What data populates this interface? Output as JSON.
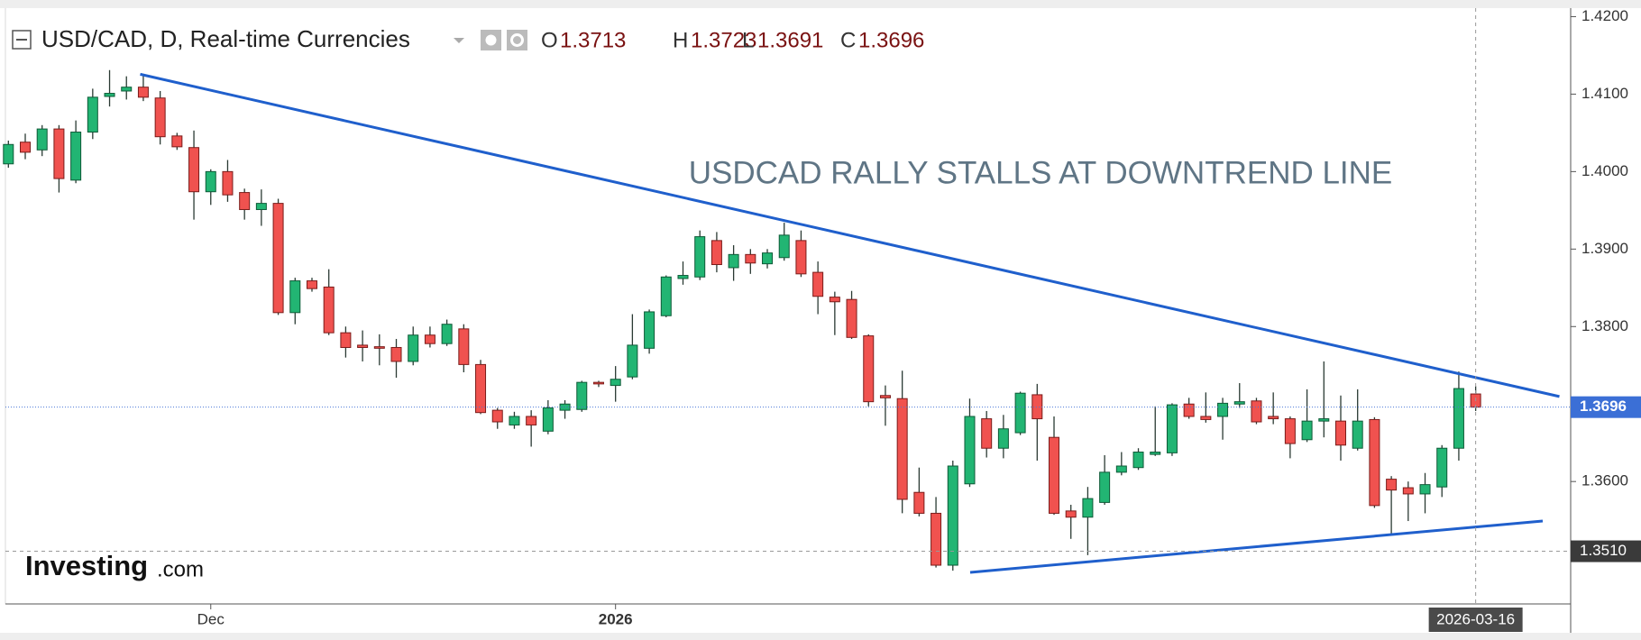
{
  "chart_data": {
    "type": "candlestick",
    "title": "USD/CAD, D, Real-time Currencies",
    "ohlc_labels": [
      "O",
      "H",
      "L",
      "C"
    ],
    "annotation": "USDCAD RALLY STALLS AT DOWNTREND LINE",
    "logo": {
      "name": "Investing",
      "suffix": ".com"
    },
    "categories": [
      null,
      null,
      null,
      null,
      null,
      null,
      null,
      null,
      null,
      null,
      null,
      null,
      "Dec",
      null,
      null,
      null,
      null,
      null,
      null,
      null,
      null,
      null,
      null,
      null,
      null,
      null,
      null,
      null,
      null,
      null,
      null,
      null,
      null,
      null,
      null,
      null,
      "2026",
      null,
      null,
      null,
      null,
      null,
      null,
      null,
      null,
      null,
      null,
      null,
      null,
      null,
      null,
      null,
      null,
      null,
      null,
      null,
      null,
      null,
      null,
      null,
      null,
      null,
      null,
      null,
      null,
      null,
      null,
      null,
      null,
      null,
      null,
      null,
      null,
      null,
      null,
      null,
      null,
      null,
      null,
      null,
      null,
      null,
      null,
      null,
      null,
      null,
      null,
      "2026-03-16"
    ],
    "open": [
      1.401,
      1.4038,
      1.4028,
      1.4055,
      1.3989,
      1.4051,
      1.4097,
      1.4104,
      1.4109,
      1.4095,
      1.4046,
      1.4031,
      1.3974,
      1.4,
      1.3973,
      1.3951,
      1.3959,
      1.3818,
      1.3859,
      1.3851,
      1.3792,
      1.3776,
      1.3774,
      1.3773,
      1.3755,
      1.3789,
      1.3778,
      1.3797,
      1.3751,
      1.3692,
      1.3673,
      1.3684,
      1.3665,
      1.3692,
      1.3693,
      1.3728,
      1.3724,
      1.3735,
      1.3772,
      1.3814,
      1.3862,
      1.3864,
      1.3911,
      1.3876,
      1.3893,
      1.3881,
      1.3889,
      1.3911,
      1.387,
      1.3838,
      1.3835,
      1.3788,
      1.3711,
      1.3707,
      1.3586,
      1.3559,
      1.3492,
      1.3597,
      1.3681,
      1.3643,
      1.3663,
      1.3712,
      1.3657,
      1.3562,
      1.3554,
      1.3573,
      1.3612,
      1.3618,
      1.3635,
      1.3637,
      1.37,
      1.3684,
      1.3684,
      1.37,
      1.3704,
      1.3684,
      1.3681,
      1.3654,
      1.3678,
      1.3678,
      1.3643,
      1.368,
      1.3603,
      1.3592,
      1.3584,
      1.3593,
      1.3643,
      1.3713
    ],
    "high": [
      1.404,
      1.4049,
      1.406,
      1.406,
      1.4066,
      1.4107,
      1.4131,
      1.4123,
      1.4124,
      1.4104,
      1.405,
      1.4053,
      1.4003,
      1.4015,
      1.3978,
      1.3977,
      1.3965,
      1.3863,
      1.3863,
      1.3874,
      1.38,
      1.3795,
      1.379,
      1.3784,
      1.38,
      1.38,
      1.3809,
      1.3803,
      1.3757,
      1.3695,
      1.369,
      1.3692,
      1.3705,
      1.3705,
      1.373,
      1.373,
      1.3749,
      1.3816,
      1.3822,
      1.3866,
      1.3884,
      1.3924,
      1.3922,
      1.3905,
      1.39,
      1.39,
      1.3934,
      1.3924,
      1.3884,
      1.3845,
      1.3846,
      1.379,
      1.3724,
      1.3743,
      1.3618,
      1.358,
      1.3627,
      1.3707,
      1.3691,
      1.3686,
      1.3716,
      1.3726,
      1.3684,
      1.357,
      1.3593,
      1.3634,
      1.3638,
      1.3643,
      1.3697,
      1.3701,
      1.3708,
      1.3715,
      1.3708,
      1.3727,
      1.3708,
      1.3715,
      1.3684,
      1.3719,
      1.3755,
      1.3711,
      1.3719,
      1.3683,
      1.3607,
      1.36,
      1.3611,
      1.3647,
      1.3742,
      1.3723
    ],
    "low": [
      1.4005,
      1.4016,
      1.402,
      1.3973,
      1.3985,
      1.4042,
      1.4084,
      1.4093,
      1.4091,
      1.4035,
      1.4028,
      1.3938,
      1.3957,
      1.3961,
      1.3938,
      1.393,
      1.3815,
      1.3803,
      1.3845,
      1.3789,
      1.376,
      1.3755,
      1.375,
      1.3734,
      1.375,
      1.3773,
      1.3775,
      1.3741,
      1.3687,
      1.3668,
      1.3668,
      1.3645,
      1.3661,
      1.3681,
      1.369,
      1.3722,
      1.3703,
      1.3732,
      1.3765,
      1.3812,
      1.3854,
      1.386,
      1.387,
      1.3859,
      1.3868,
      1.3875,
      1.3885,
      1.3864,
      1.3816,
      1.3789,
      1.3784,
      1.3697,
      1.3672,
      1.3559,
      1.3555,
      1.3489,
      1.3485,
      1.3593,
      1.3631,
      1.363,
      1.366,
      1.3627,
      1.3557,
      1.3526,
      1.3505,
      1.357,
      1.3608,
      1.3615,
      1.3633,
      1.3633,
      1.3681,
      1.3676,
      1.3654,
      1.3695,
      1.3674,
      1.3674,
      1.363,
      1.3651,
      1.3657,
      1.3627,
      1.364,
      1.3566,
      1.3532,
      1.3549,
      1.3559,
      1.358,
      1.3627,
      1.3691
    ],
    "close": [
      1.4035,
      1.4025,
      1.4055,
      1.3991,
      1.4051,
      1.4096,
      1.4101,
      1.4109,
      1.4096,
      1.4045,
      1.4032,
      1.3974,
      1.4,
      1.397,
      1.3951,
      1.3959,
      1.3818,
      1.3859,
      1.3849,
      1.3792,
      1.3773,
      1.3773,
      1.3772,
      1.3755,
      1.3789,
      1.3778,
      1.3803,
      1.3751,
      1.3689,
      1.3677,
      1.3684,
      1.3673,
      1.3695,
      1.37,
      1.3728,
      1.3726,
      1.3732,
      1.3776,
      1.3819,
      1.3864,
      1.3866,
      1.3916,
      1.388,
      1.3893,
      1.3882,
      1.3895,
      1.3918,
      1.3868,
      1.3839,
      1.3832,
      1.3786,
      1.3703,
      1.3708,
      1.3577,
      1.3559,
      1.3492,
      1.362,
      1.3684,
      1.3643,
      1.3668,
      1.3714,
      1.3681,
      1.3559,
      1.3554,
      1.3578,
      1.3612,
      1.362,
      1.3638,
      1.3638,
      1.3699,
      1.3684,
      1.368,
      1.3701,
      1.3703,
      1.3677,
      1.3681,
      1.3649,
      1.3678,
      1.3681,
      1.3647,
      1.3678,
      1.3569,
      1.3589,
      1.3584,
      1.3596,
      1.3643,
      1.372,
      1.3696
    ],
    "up_color": "#22b573",
    "down_color": "#f0524f",
    "ylim": [
      1.3442,
      1.4211
    ],
    "yticks": [
      {
        "value": 1.42,
        "label": "1.4200"
      },
      {
        "value": 1.41,
        "label": "1.4100"
      },
      {
        "value": 1.4,
        "label": "1.4000"
      },
      {
        "value": 1.39,
        "label": "1.3900"
      },
      {
        "value": 1.38,
        "label": "1.3800"
      },
      {
        "value": 1.36,
        "label": "1.3600"
      }
    ],
    "crosshair": {
      "value": 1.351,
      "label": "1.3510"
    }
  }
}
